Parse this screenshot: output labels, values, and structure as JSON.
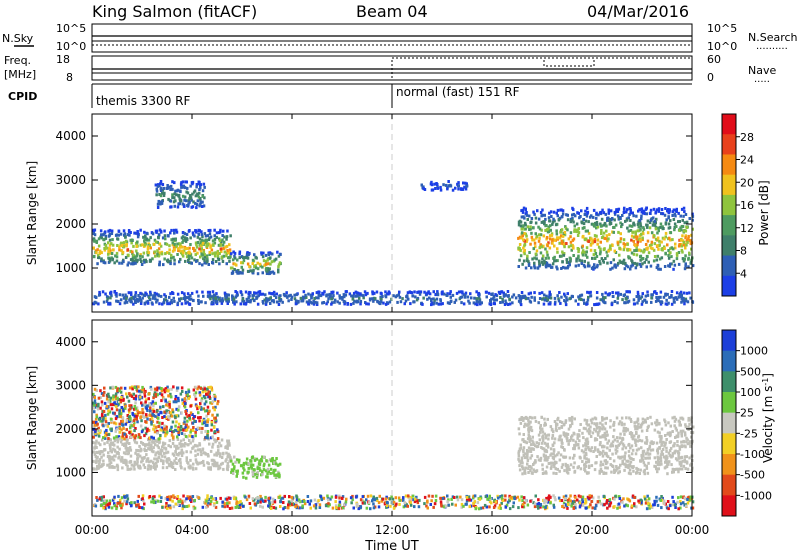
{
  "header": {
    "station": "King Salmon (fitACF)",
    "beam": "Beam 04",
    "date": "04/Mar/2016"
  },
  "left_labels": {
    "nsky": "N.Sky",
    "freq": "Freq.",
    "freq_unit": "[MHz]",
    "cpid": "CPID"
  },
  "right_labels": {
    "nsearch": "N.Search",
    "nsearch_line": "..........",
    "nave": "Nave",
    "nave_line": "....."
  },
  "noise_axis": {
    "top": "10^5",
    "bottom": "10^0",
    "top_right": "10^5",
    "bottom_right": "10^0"
  },
  "freq_axis": {
    "top": "18",
    "bottom": "8",
    "right_top": "60",
    "right_bottom": "0"
  },
  "cpid_segments": [
    {
      "label": "themis 3300 RF",
      "start_hour": 0
    },
    {
      "label": "normal (fast) 151 RF",
      "start_hour": 12
    }
  ],
  "colors": {
    "power": [
      "#1c3fe6",
      "#2e5fb5",
      "#3f7f6a",
      "#4e9b60",
      "#8fc43d",
      "#f0c21e",
      "#f58a12",
      "#e8411c",
      "#e10d1a"
    ],
    "velocity": [
      "#1c3fd8",
      "#2b6db8",
      "#3e8f6b",
      "#6cc73f",
      "#c8c8c0",
      "#f2cf25",
      "#f0921a",
      "#e24a1b",
      "#e0101a"
    ],
    "ground_scatter": "#c0c0b8"
  },
  "chart_data": [
    {
      "type": "heatmap",
      "name": "Power",
      "x": {
        "label": "Time UT",
        "range_hours": [
          0,
          24
        ],
        "ticks": [
          "00:00",
          "04:00",
          "08:00",
          "12:00",
          "16:00",
          "20:00",
          "00:00"
        ],
        "tick_hours": [
          0,
          4,
          8,
          12,
          16,
          20,
          24
        ]
      },
      "y": {
        "label": "Slant Range [km]",
        "range": [
          0,
          4500
        ],
        "ticks": [
          1000,
          2000,
          3000,
          4000
        ]
      },
      "colorbar": {
        "label": "Power [dB]",
        "range": [
          0,
          32
        ],
        "ticks": [
          "4",
          "8",
          "12",
          "16",
          "20",
          "24",
          "28"
        ]
      },
      "features": [
        {
          "t_start_h": 0.0,
          "t_end_h": 5.5,
          "range_km": [
            1100,
            1900
          ],
          "peak_db": 26
        },
        {
          "t_start_h": 2.5,
          "t_end_h": 4.5,
          "range_km": [
            2400,
            3000
          ],
          "peak_db": 12
        },
        {
          "t_start_h": 5.5,
          "t_end_h": 7.5,
          "range_km": [
            900,
            1400
          ],
          "peak_db": 20
        },
        {
          "t_start_h": 13.0,
          "t_end_h": 15.0,
          "range_km": [
            2800,
            3000
          ],
          "peak_db": 4
        },
        {
          "t_start_h": 17.0,
          "t_end_h": 24.0,
          "range_km": [
            1000,
            2400
          ],
          "peak_db": 26
        },
        {
          "t_start_h": 0.0,
          "t_end_h": 24.0,
          "range_km": [
            200,
            500
          ],
          "peak_db": 8
        }
      ]
    },
    {
      "type": "heatmap",
      "name": "Velocity",
      "x": {
        "label": "Time UT",
        "range_hours": [
          0,
          24
        ]
      },
      "y": {
        "label": "Slant Range [km]",
        "range": [
          0,
          4500
        ],
        "ticks": [
          1000,
          2000,
          3000,
          4000
        ]
      },
      "colorbar": {
        "label": "Velocity [m s^-1]",
        "ticks": [
          "1000",
          "500",
          "100",
          "25",
          "-25",
          "-100",
          "-500",
          "-1000"
        ]
      },
      "features": [
        {
          "t_start_h": 0.0,
          "t_end_h": 5.5,
          "range_km": [
            1100,
            1800
          ],
          "class": "ground scatter"
        },
        {
          "t_start_h": 0.0,
          "t_end_h": 5.0,
          "range_km": [
            1800,
            3000
          ],
          "velocity": "mixed"
        },
        {
          "t_start_h": 5.5,
          "t_end_h": 7.5,
          "range_km": [
            900,
            1400
          ],
          "velocity": 100
        },
        {
          "t_start_h": 17.0,
          "t_end_h": 24.0,
          "range_km": [
            1000,
            2300
          ],
          "class": "ground scatter"
        },
        {
          "t_start_h": 0.0,
          "t_end_h": 24.0,
          "range_km": [
            200,
            500
          ],
          "velocity": "mixed"
        }
      ]
    }
  ]
}
